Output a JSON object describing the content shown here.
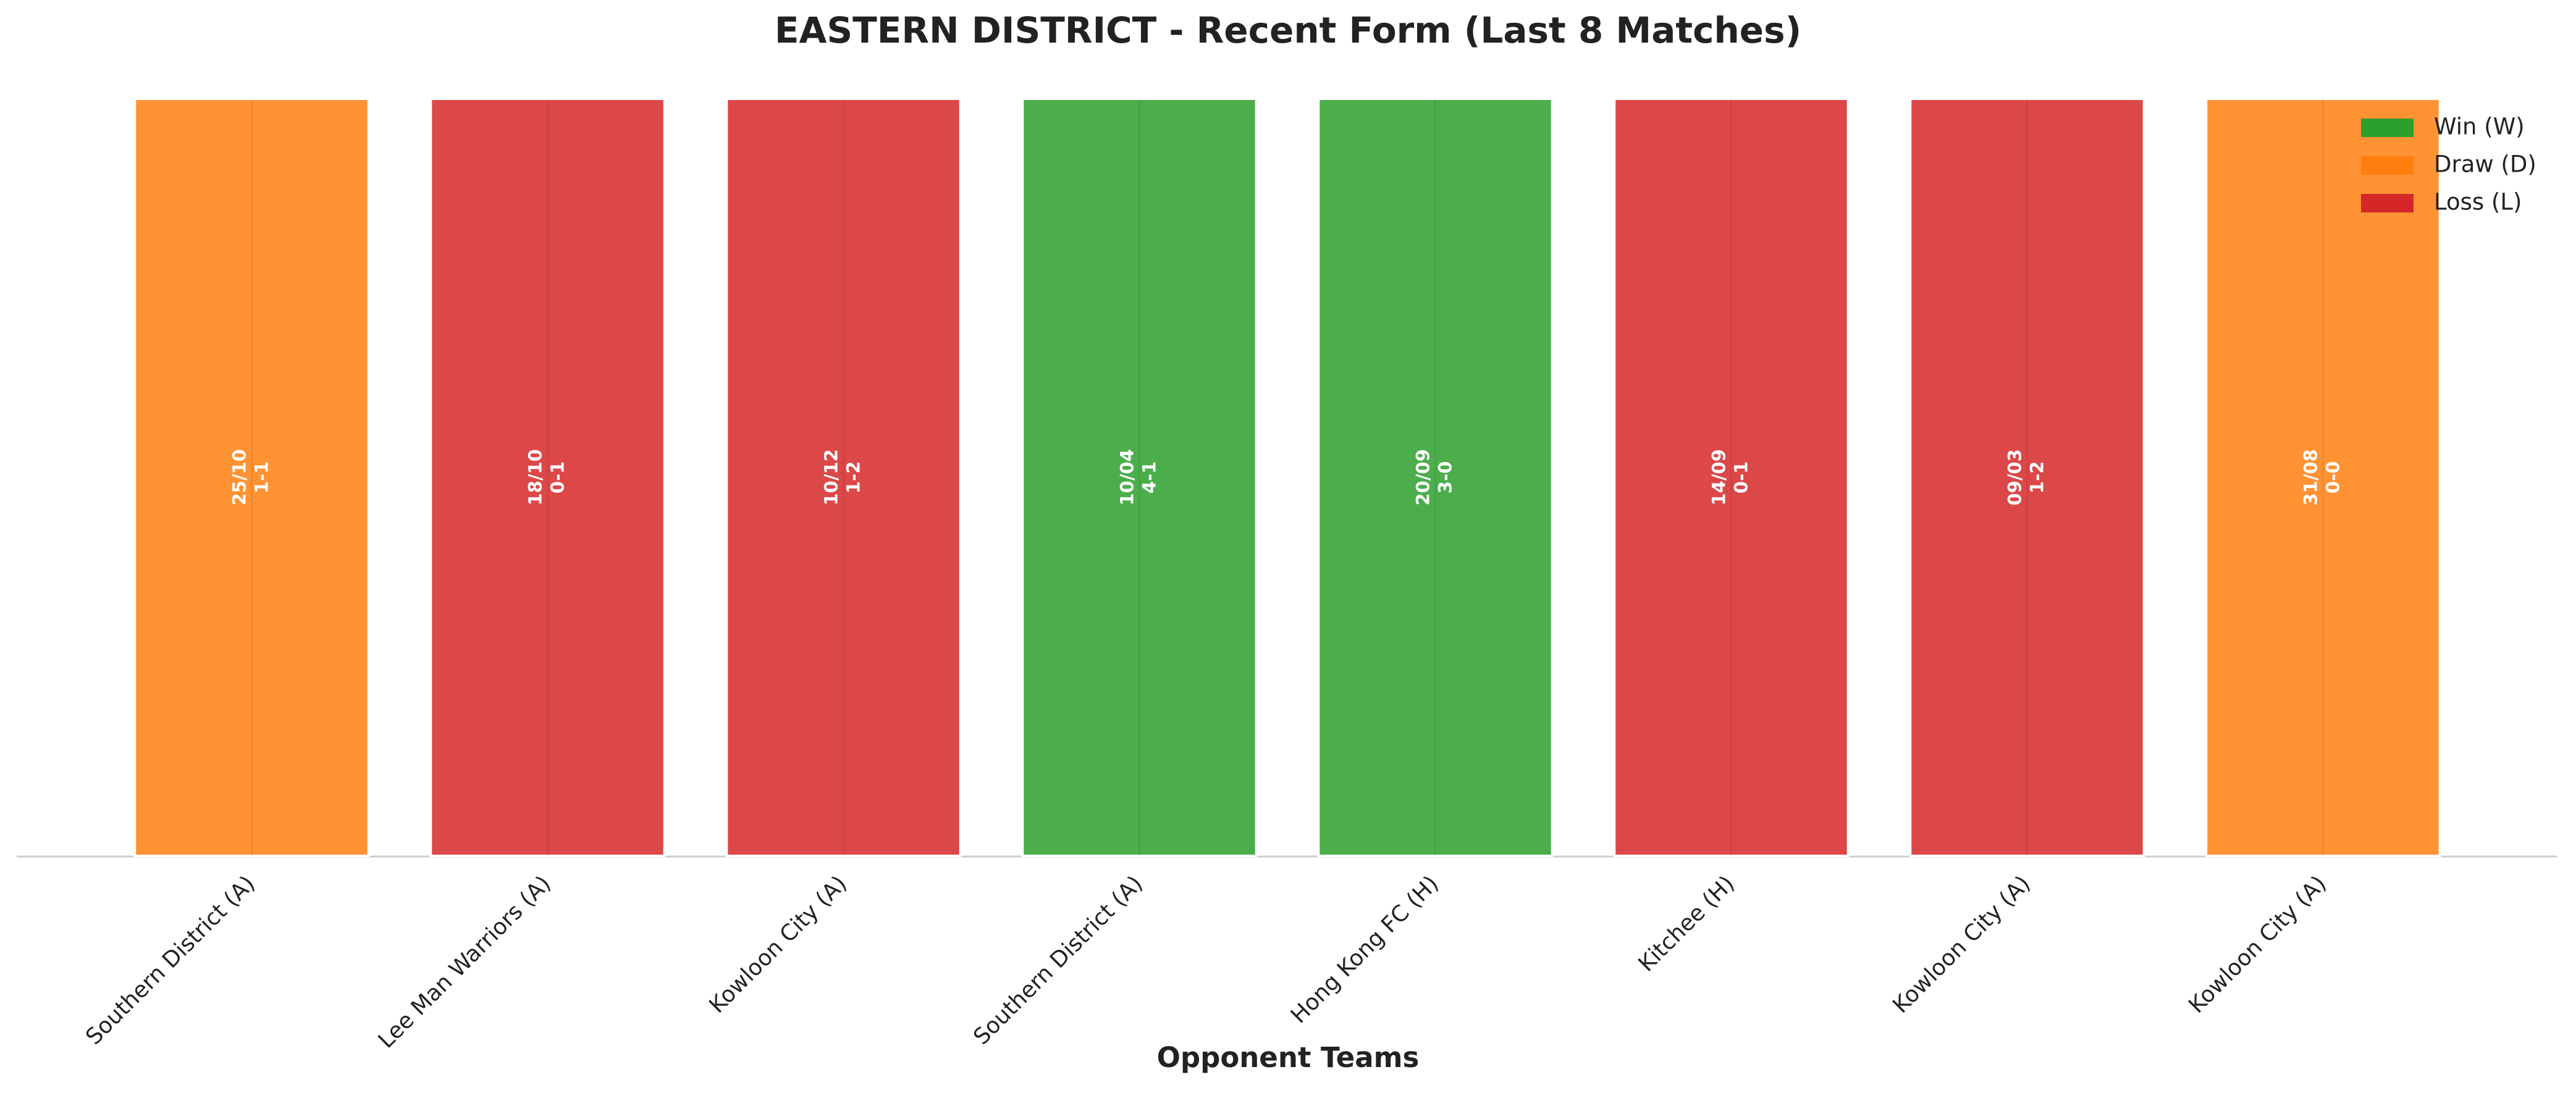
{
  "chart_data": {
    "type": "bar",
    "title": "EASTERN DISTRICT - Recent Form (Last 8 Matches)",
    "x_label": "Opponent Teams",
    "categories": [
      "Southern District (A)",
      "Lee Man Warriors (A)",
      "Kowloon City (A)",
      "Southern District (A)",
      "Hong Kong FC (H)",
      "Kitchee (H)",
      "Kowloon City (A)",
      "Kowloon City (A)"
    ],
    "values": [
      1,
      1,
      1,
      1,
      1,
      1,
      1,
      1
    ],
    "dates": [
      "25/10",
      "18/10",
      "10/12",
      "10/04",
      "20/09",
      "14/09",
      "09/03",
      "31/08"
    ],
    "scores": [
      "1-1",
      "0-1",
      "1-2",
      "4-1",
      "3-0",
      "0-1",
      "1-2",
      "0-0"
    ],
    "colors": [
      "#ff7f0e",
      "#d62728",
      "#d62728",
      "#2ca02c",
      "#2ca02c",
      "#d62728",
      "#d62728",
      "#ff7f0e"
    ],
    "ylim": [
      0,
      1
    ],
    "legend_position": "upper right",
    "legend": [
      {
        "label": "Win (W)",
        "color": "#2ca02c"
      },
      {
        "label": "Draw (D)",
        "color": "#ff7f0e"
      },
      {
        "label": "Loss (L)",
        "color": "#d62728"
      }
    ]
  }
}
